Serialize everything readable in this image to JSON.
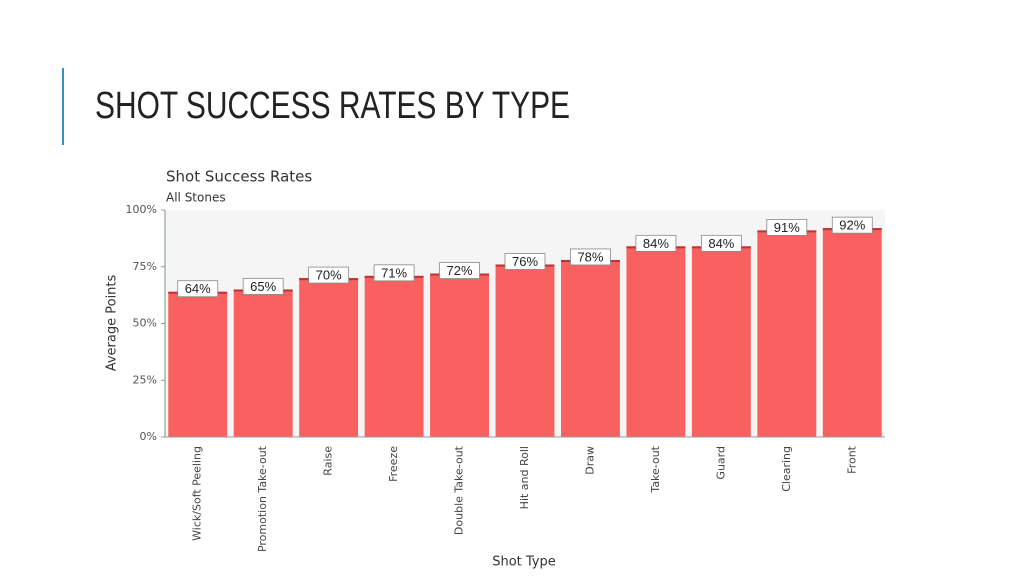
{
  "slide_title": "SHOT SUCCESS RATES BY TYPE",
  "chart_data": {
    "type": "bar",
    "title": "Shot Success Rates",
    "subtitle": "All Stones",
    "x_label": "Shot Type",
    "y_label": "Average Points",
    "categories": [
      "Wick/Soft Peeling",
      "Promotion Take-out",
      "Raise",
      "Freeze",
      "Double Take-out",
      "Hit and Roll",
      "Draw",
      "Take-out",
      "Guard",
      "Clearing",
      "Front"
    ],
    "values": [
      64,
      65,
      70,
      71,
      72,
      76,
      78,
      84,
      84,
      91,
      92
    ],
    "value_labels": [
      "64%",
      "65%",
      "70%",
      "71%",
      "72%",
      "76%",
      "78%",
      "84%",
      "84%",
      "91%",
      "92%"
    ],
    "color": "#f96161",
    "ylim": [
      0,
      100
    ],
    "yticks": [
      {
        "value": 0,
        "label": "0%"
      },
      {
        "value": 25,
        "label": "25%"
      },
      {
        "value": 50,
        "label": "50%"
      },
      {
        "value": 75,
        "label": "75%"
      },
      {
        "value": 100,
        "label": "100%"
      }
    ]
  }
}
